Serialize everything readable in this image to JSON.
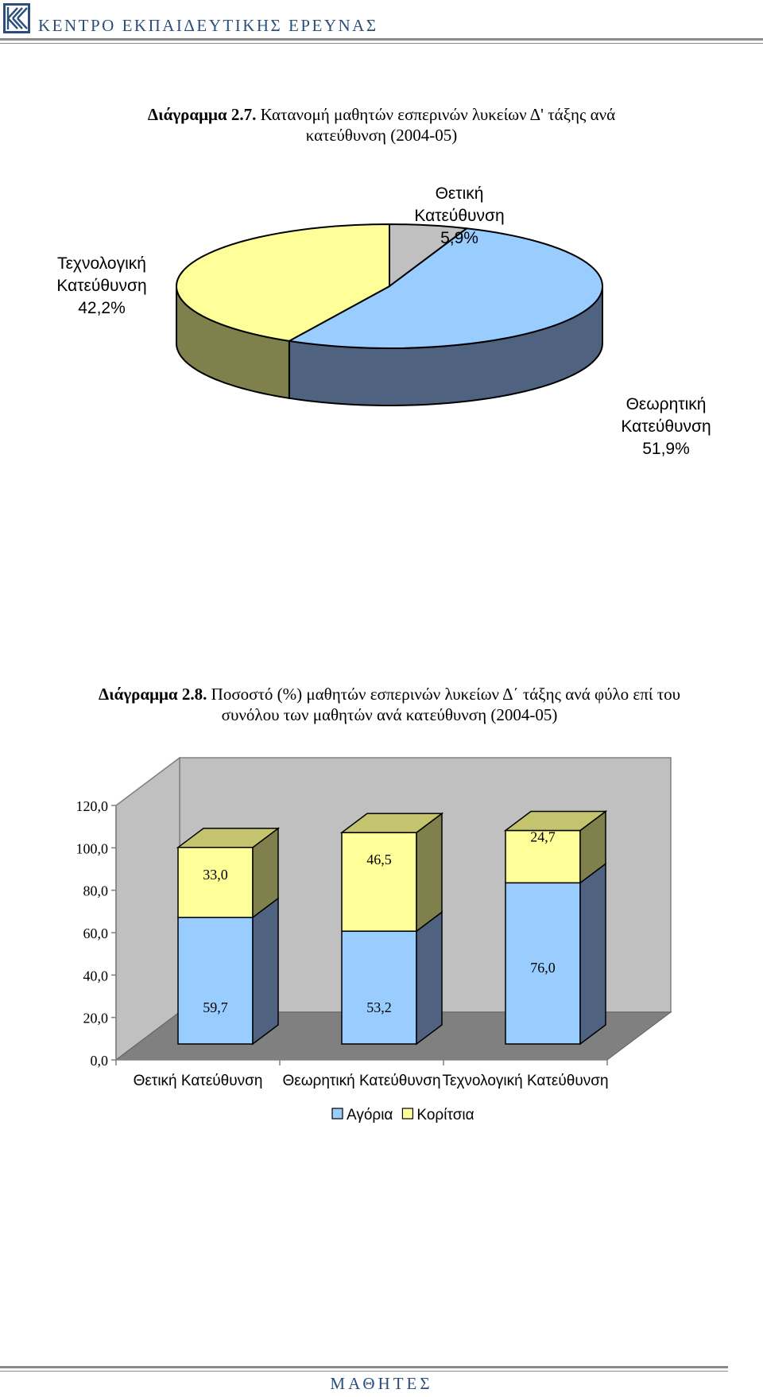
{
  "header": {
    "organization": "ΚΕΝΤΡΟ ΕΚΠΑΙΔΕΥΤΙΚΗΣ ΕΡΕΥΝΑΣ"
  },
  "footer": {
    "section": "ΜΑΘΗΤΕΣ"
  },
  "chart_data": [
    {
      "type": "pie",
      "caption_label": "Διάγραμμα 2.7.",
      "title_line1": "Κατανομή μαθητών εσπερινών λυκείων Δ' τάξης ανά",
      "title_line2": "κατεύθυνση (2004-05)",
      "slices": [
        {
          "name_line1": "Θετική",
          "name_line2": "Κατεύθυνση",
          "value": 5.9,
          "label": "5,9%",
          "color": "#C0C0C0",
          "side_color": "#808080"
        },
        {
          "name_line1": "Θεωρητική",
          "name_line2": "Κατεύθυνση",
          "value": 51.9,
          "label": "51,9%",
          "color": "#99CCFF",
          "side_color": "#4F6280"
        },
        {
          "name_line1": "Τεχνολογική",
          "name_line2": "Κατεύθυνση",
          "value": 42.2,
          "label": "42,2%",
          "color": "#FFFF99",
          "side_color": "#80804C"
        }
      ]
    },
    {
      "type": "bar",
      "stacked": true,
      "caption_label": "Διάγραμμα 2.8.",
      "title_line1": "Ποσοστό (%) μαθητών εσπερινών λυκείων Δ΄ τάξης ανά φύλο επί του",
      "title_line2": "συνόλου των μαθητών ανά κατεύθυνση (2004-05)",
      "categories": [
        "Θετική Κατεύθυνση",
        "Θεωρητική Κατεύθυνση",
        "Τεχνολογική Κατεύθυνση"
      ],
      "series": [
        {
          "name": "Αγόρια",
          "values": [
            59.7,
            53.2,
            76.0
          ],
          "labels": [
            "59,7",
            "53,2",
            "76,0"
          ],
          "color": "#99CCFF",
          "side_color": "#4F6280"
        },
        {
          "name": "Κορίτσια",
          "values": [
            33.0,
            46.5,
            24.7
          ],
          "labels": [
            "33,0",
            "46,5",
            "24,7"
          ],
          "color": "#FFFF99",
          "side_color": "#80804C",
          "top_color": "#C4C46E"
        }
      ],
      "yticks": [
        "0,0",
        "20,0",
        "40,0",
        "60,0",
        "80,0",
        "100,0",
        "120,0"
      ],
      "ylim": [
        0,
        120
      ],
      "legend_position": "bottom",
      "wall_color": "#C0C0C0",
      "floor_color": "#808080"
    }
  ]
}
